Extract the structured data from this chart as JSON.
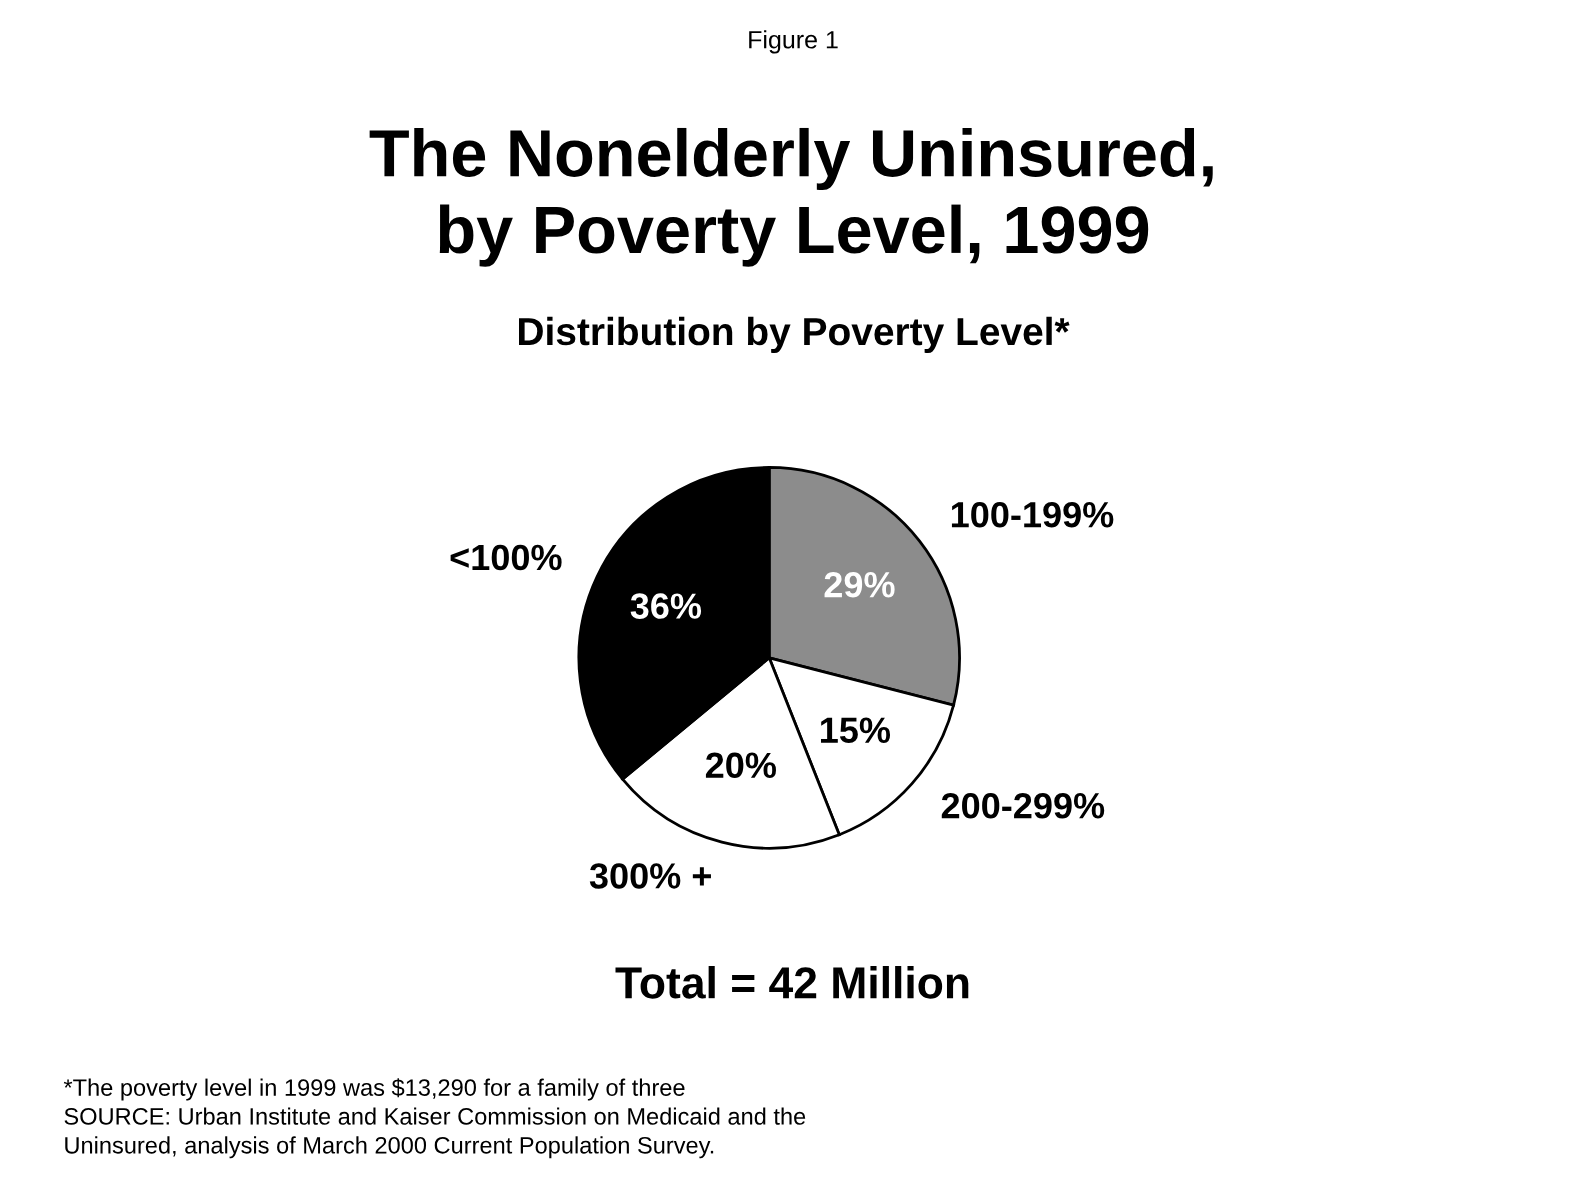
{
  "chart_data": {
    "type": "pie",
    "title": "The Nonelderly Uninsured,\nby Poverty Level, 1999",
    "subtitle": "Distribution by Poverty Level*",
    "categories": [
      "100-199%",
      "200-299%",
      "300% +",
      "<100%"
    ],
    "values": [
      29,
      15,
      20,
      36
    ],
    "value_labels": [
      "29%",
      "15%",
      "20%",
      "36%"
    ],
    "colors": [
      "#8c8c8c",
      "#ffffff",
      "#ffffff",
      "#000000"
    ],
    "annotations": [
      "Figure 1",
      "Total = 42 Million",
      "*The poverty level in 1999 was $13,290 for a family of three\nSOURCE: Urban Institute and Kaiser Commission on Medicaid and the\nUninsured, analysis of March 2000 Current Population Survey."
    ]
  }
}
